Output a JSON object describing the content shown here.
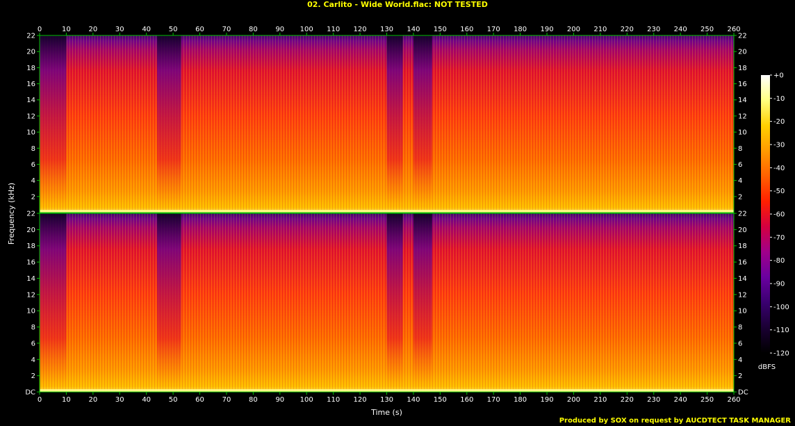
{
  "title": "02. Carlito - Wide World.flac: NOT TESTED",
  "footer": "Produced by SOX on request by AUCDTECT TASK MANAGER",
  "chart_data": {
    "type": "heatmap",
    "title": "02. Carlito - Wide World.flac: NOT TESTED",
    "xlabel": "Time (s)",
    "ylabel": "Frequency (kHz)",
    "xlim": [
      0,
      260
    ],
    "ylim": [
      0,
      22
    ],
    "x_ticks": [
      "0",
      "10",
      "20",
      "30",
      "40",
      "50",
      "60",
      "70",
      "80",
      "90",
      "100",
      "110",
      "120",
      "130",
      "140",
      "150",
      "160",
      "170",
      "180",
      "190",
      "200",
      "210",
      "220",
      "230",
      "240",
      "250",
      "260"
    ],
    "y_ticks": [
      "DC",
      "2",
      "4",
      "6",
      "8",
      "10",
      "12",
      "14",
      "16",
      "18",
      "20",
      "22"
    ],
    "channels": 2,
    "colorbar": {
      "label": "dBFS",
      "ticks": [
        "+0",
        "-10",
        "-20",
        "-30",
        "-40",
        "-50",
        "-60",
        "-70",
        "-80",
        "-90",
        "-100",
        "-110",
        "-120"
      ],
      "range": [
        -120,
        0
      ],
      "colors": [
        "#000000",
        "#1a0033",
        "#3a0070",
        "#6a00a0",
        "#a0008a",
        "#d40040",
        "#ff2000",
        "#ff6000",
        "#ff9a00",
        "#ffd000",
        "#ffff80",
        "#ffffff"
      ]
    },
    "quiet_regions_s": [
      [
        0,
        10
      ],
      [
        44,
        53
      ],
      [
        130,
        136
      ],
      [
        140,
        147
      ]
    ]
  }
}
